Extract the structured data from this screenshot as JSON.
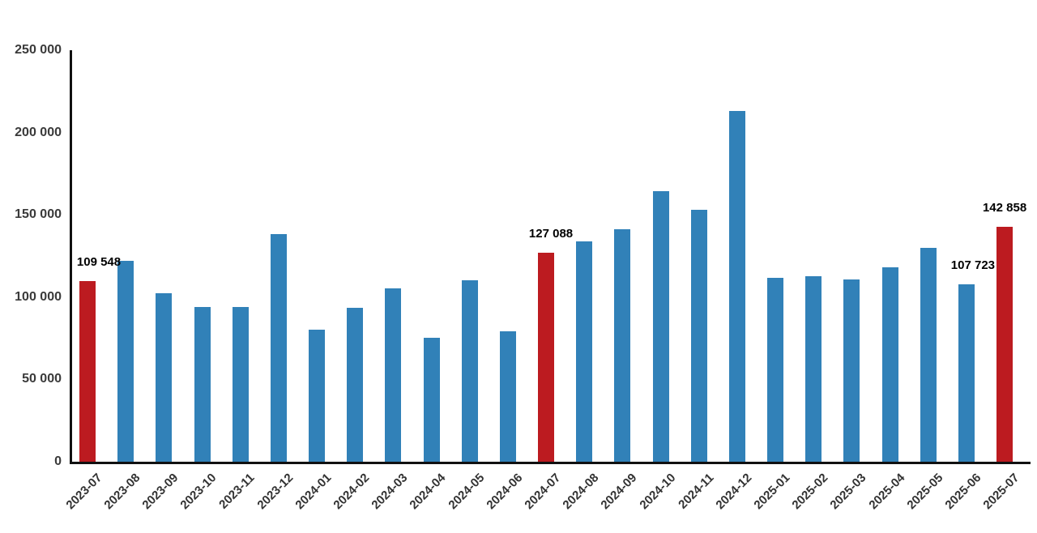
{
  "chart_data": {
    "type": "bar",
    "title": "",
    "xlabel": "",
    "ylabel": "",
    "categories": [
      "2023-07",
      "2023-08",
      "2023-09",
      "2023-10",
      "2023-11",
      "2023-12",
      "2024-01",
      "2024-02",
      "2024-03",
      "2024-04",
      "2024-05",
      "2024-06",
      "2024-07",
      "2024-08",
      "2024-09",
      "2024-10",
      "2024-11",
      "2024-12",
      "2025-01",
      "2025-02",
      "2025-03",
      "2025-04",
      "2025-05",
      "2025-06",
      "2025-07"
    ],
    "values": [
      109548,
      122000,
      102500,
      93800,
      93800,
      138300,
      80200,
      93500,
      105300,
      75300,
      110200,
      79200,
      127088,
      133800,
      141200,
      164300,
      153000,
      213000,
      111700,
      112700,
      110700,
      118100,
      129900,
      107723,
      142858
    ],
    "highlighted_indices": [
      0,
      12,
      24
    ],
    "data_labels": [
      {
        "index": 0,
        "text": "109 548"
      },
      {
        "index": 12,
        "text": "127 088"
      },
      {
        "index": 23,
        "text": "107 723"
      },
      {
        "index": 24,
        "text": "142 858"
      }
    ],
    "ylim": [
      0,
      250000
    ],
    "yticks": [
      0,
      50000,
      100000,
      150000,
      200000,
      250000
    ],
    "ytick_labels": [
      "0",
      "50 000",
      "100 000",
      "150 000",
      "200 000",
      "250 000"
    ],
    "grid": false,
    "legend": "none",
    "colors": {
      "bar": "#3181b8",
      "highlight": "#bc1b20",
      "axis": "#111111",
      "tick_text": "#3a3a3a",
      "data_label_text": "#000000",
      "background": "#ffffff"
    }
  }
}
